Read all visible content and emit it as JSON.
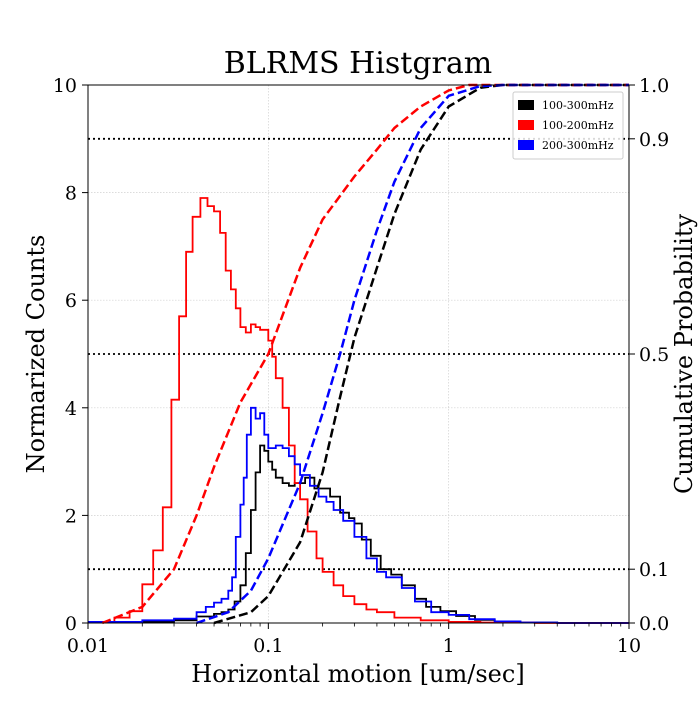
{
  "chart_data": {
    "type": "line",
    "title": "BLRMS Histgram",
    "xlabel": "Horizontal motion [um/sec]",
    "ylabel": "Normarized Counts",
    "y2label": "Cumulative Probability",
    "x_scale": "log",
    "xlim": [
      0.01,
      10
    ],
    "ylim": [
      0,
      10
    ],
    "y2lim": [
      0,
      1
    ],
    "grid": true,
    "legend_position": "top-right",
    "x_ticks": [
      {
        "value": 0.01,
        "label": "0.01"
      },
      {
        "value": 0.1,
        "label": "0.1"
      },
      {
        "value": 1,
        "label": "1"
      },
      {
        "value": 10,
        "label": "10"
      }
    ],
    "y_ticks": [
      {
        "value": 0,
        "label": "0"
      },
      {
        "value": 2,
        "label": "2"
      },
      {
        "value": 4,
        "label": "4"
      },
      {
        "value": 6,
        "label": "6"
      },
      {
        "value": 8,
        "label": "8"
      },
      {
        "value": 10,
        "label": "10"
      }
    ],
    "y2_ticks": [
      {
        "value": 0,
        "label": "0.0"
      },
      {
        "value": 0.1,
        "label": "0.1"
      },
      {
        "value": 0.5,
        "label": "0.5"
      },
      {
        "value": 0.9,
        "label": "0.9"
      },
      {
        "value": 1,
        "label": "1.0"
      }
    ],
    "reference_lines": [
      0.1,
      0.5,
      0.9
    ],
    "series": [
      {
        "name": "100-300mHz",
        "color": "#000000",
        "hist": [
          [
            0.01,
            0.02
          ],
          [
            0.03,
            0.05
          ],
          [
            0.04,
            0.12
          ],
          [
            0.05,
            0.17
          ],
          [
            0.055,
            0.2
          ],
          [
            0.06,
            0.25
          ],
          [
            0.065,
            0.4
          ],
          [
            0.07,
            0.7
          ],
          [
            0.075,
            1.3
          ],
          [
            0.08,
            2.1
          ],
          [
            0.085,
            2.8
          ],
          [
            0.09,
            3.3
          ],
          [
            0.095,
            3.2
          ],
          [
            0.1,
            3.0
          ],
          [
            0.105,
            2.85
          ],
          [
            0.11,
            2.7
          ],
          [
            0.12,
            2.6
          ],
          [
            0.13,
            2.55
          ],
          [
            0.14,
            2.6
          ],
          [
            0.16,
            2.7
          ],
          [
            0.18,
            2.5
          ],
          [
            0.2,
            2.5
          ],
          [
            0.22,
            2.35
          ],
          [
            0.25,
            2.05
          ],
          [
            0.28,
            1.95
          ],
          [
            0.3,
            1.85
          ],
          [
            0.33,
            1.55
          ],
          [
            0.37,
            1.25
          ],
          [
            0.42,
            1.0
          ],
          [
            0.48,
            0.9
          ],
          [
            0.55,
            0.7
          ],
          [
            0.65,
            0.45
          ],
          [
            0.75,
            0.3
          ],
          [
            0.9,
            0.22
          ],
          [
            1.1,
            0.13
          ],
          [
            1.4,
            0.06
          ],
          [
            1.8,
            0.03
          ],
          [
            2.5,
            0.01
          ],
          [
            4.0,
            0.0
          ]
        ],
        "cdf": [
          [
            0.05,
            0.0
          ],
          [
            0.08,
            0.02
          ],
          [
            0.1,
            0.05
          ],
          [
            0.15,
            0.15
          ],
          [
            0.2,
            0.28
          ],
          [
            0.25,
            0.42
          ],
          [
            0.3,
            0.53
          ],
          [
            0.4,
            0.66
          ],
          [
            0.5,
            0.76
          ],
          [
            0.7,
            0.88
          ],
          [
            1.0,
            0.96
          ],
          [
            1.5,
            0.995
          ],
          [
            2.0,
            1.0
          ],
          [
            10,
            1.0
          ]
        ]
      },
      {
        "name": "100-200mHz",
        "color": "#ff0000",
        "hist": [
          [
            0.01,
            0.02
          ],
          [
            0.014,
            0.1
          ],
          [
            0.017,
            0.22
          ],
          [
            0.02,
            0.72
          ],
          [
            0.023,
            1.35
          ],
          [
            0.026,
            2.15
          ],
          [
            0.029,
            4.15
          ],
          [
            0.032,
            5.7
          ],
          [
            0.035,
            6.9
          ],
          [
            0.038,
            7.55
          ],
          [
            0.042,
            7.9
          ],
          [
            0.046,
            7.75
          ],
          [
            0.05,
            7.65
          ],
          [
            0.054,
            7.25
          ],
          [
            0.058,
            6.55
          ],
          [
            0.062,
            6.2
          ],
          [
            0.066,
            5.85
          ],
          [
            0.07,
            5.5
          ],
          [
            0.075,
            5.4
          ],
          [
            0.08,
            5.55
          ],
          [
            0.085,
            5.5
          ],
          [
            0.09,
            5.45
          ],
          [
            0.1,
            5.25
          ],
          [
            0.105,
            4.95
          ],
          [
            0.11,
            4.55
          ],
          [
            0.12,
            4.0
          ],
          [
            0.13,
            3.3
          ],
          [
            0.14,
            2.6
          ],
          [
            0.15,
            2.3
          ],
          [
            0.165,
            1.7
          ],
          [
            0.185,
            1.2
          ],
          [
            0.2,
            0.95
          ],
          [
            0.23,
            0.7
          ],
          [
            0.26,
            0.5
          ],
          [
            0.3,
            0.35
          ],
          [
            0.35,
            0.25
          ],
          [
            0.4,
            0.2
          ],
          [
            0.5,
            0.1
          ],
          [
            0.7,
            0.05
          ],
          [
            1.0,
            0.02
          ],
          [
            1.5,
            0.01
          ],
          [
            3.0,
            0.0
          ]
        ],
        "cdf": [
          [
            0.012,
            0.0
          ],
          [
            0.02,
            0.03
          ],
          [
            0.03,
            0.1
          ],
          [
            0.04,
            0.2
          ],
          [
            0.05,
            0.29
          ],
          [
            0.07,
            0.41
          ],
          [
            0.1,
            0.5
          ],
          [
            0.15,
            0.66
          ],
          [
            0.2,
            0.75
          ],
          [
            0.3,
            0.83
          ],
          [
            0.4,
            0.88
          ],
          [
            0.5,
            0.92
          ],
          [
            0.7,
            0.96
          ],
          [
            1.0,
            0.99
          ],
          [
            1.3,
            1.0
          ],
          [
            10,
            1.0
          ]
        ]
      },
      {
        "name": "200-300mHz",
        "color": "#0000ff",
        "hist": [
          [
            0.01,
            0.02
          ],
          [
            0.02,
            0.05
          ],
          [
            0.03,
            0.08
          ],
          [
            0.04,
            0.2
          ],
          [
            0.045,
            0.3
          ],
          [
            0.05,
            0.38
          ],
          [
            0.055,
            0.45
          ],
          [
            0.06,
            0.6
          ],
          [
            0.063,
            0.85
          ],
          [
            0.066,
            1.6
          ],
          [
            0.07,
            2.2
          ],
          [
            0.073,
            2.7
          ],
          [
            0.076,
            3.5
          ],
          [
            0.08,
            4.0
          ],
          [
            0.085,
            3.8
          ],
          [
            0.09,
            3.9
          ],
          [
            0.095,
            3.5
          ],
          [
            0.1,
            3.25
          ],
          [
            0.11,
            3.3
          ],
          [
            0.12,
            3.25
          ],
          [
            0.13,
            3.1
          ],
          [
            0.14,
            2.95
          ],
          [
            0.15,
            2.75
          ],
          [
            0.17,
            2.55
          ],
          [
            0.19,
            2.35
          ],
          [
            0.21,
            2.25
          ],
          [
            0.23,
            2.1
          ],
          [
            0.26,
            1.9
          ],
          [
            0.3,
            1.6
          ],
          [
            0.35,
            1.2
          ],
          [
            0.4,
            0.95
          ],
          [
            0.45,
            0.85
          ],
          [
            0.55,
            0.65
          ],
          [
            0.65,
            0.4
          ],
          [
            0.8,
            0.2
          ],
          [
            1.0,
            0.15
          ],
          [
            1.3,
            0.07
          ],
          [
            1.8,
            0.03
          ],
          [
            2.5,
            0.01
          ],
          [
            4.0,
            0.0
          ]
        ],
        "cdf": [
          [
            0.04,
            0.0
          ],
          [
            0.06,
            0.02
          ],
          [
            0.08,
            0.06
          ],
          [
            0.1,
            0.12
          ],
          [
            0.15,
            0.26
          ],
          [
            0.2,
            0.39
          ],
          [
            0.25,
            0.5
          ],
          [
            0.3,
            0.6
          ],
          [
            0.4,
            0.73
          ],
          [
            0.5,
            0.82
          ],
          [
            0.7,
            0.92
          ],
          [
            1.0,
            0.98
          ],
          [
            1.5,
            0.998
          ],
          [
            2.0,
            1.0
          ],
          [
            10,
            1.0
          ]
        ]
      }
    ]
  }
}
